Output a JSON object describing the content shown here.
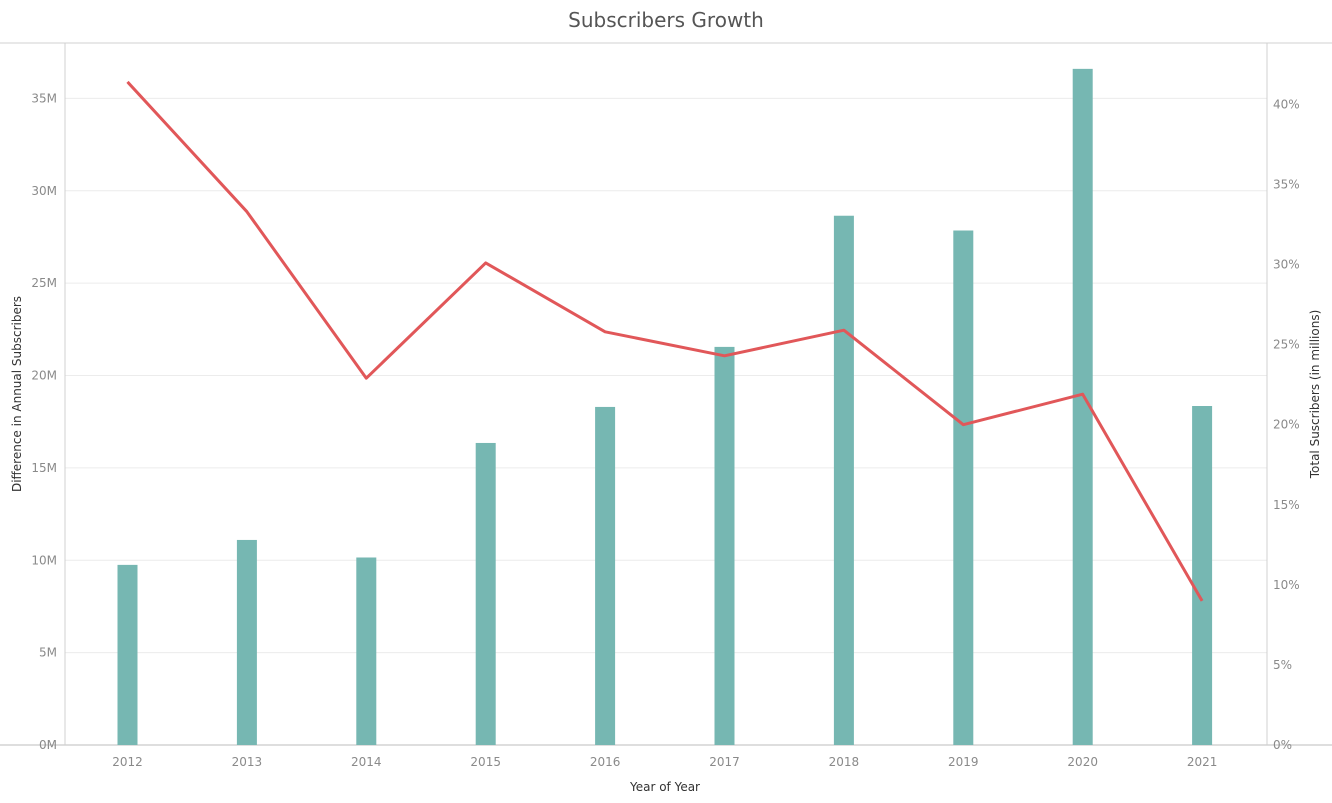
{
  "chart_data": {
    "type": "bar",
    "title": "Subscribers Growth",
    "xlabel": "Year of Year",
    "ylabel": "Difference in Annual Subscribers",
    "y2label": "Total Suscribers (in millions)",
    "categories": [
      "2012",
      "2013",
      "2014",
      "2015",
      "2016",
      "2017",
      "2018",
      "2019",
      "2020",
      "2021"
    ],
    "ylim": [
      0,
      38000000
    ],
    "y2lim": [
      0,
      0.4383
    ],
    "yticks": [
      0,
      5000000,
      10000000,
      15000000,
      20000000,
      25000000,
      30000000,
      35000000
    ],
    "ytick_labels": [
      "0M",
      "5M",
      "10M",
      "15M",
      "20M",
      "25M",
      "30M",
      "35M"
    ],
    "y2ticks": [
      0,
      0.05,
      0.1,
      0.15,
      0.2,
      0.25,
      0.3,
      0.35,
      0.4
    ],
    "y2tick_labels": [
      "0%",
      "5%",
      "10%",
      "15%",
      "20%",
      "25%",
      "30%",
      "35%",
      "40%"
    ],
    "grid": true,
    "series": [
      {
        "type": "bar",
        "axis": "left",
        "color": "#76b7b2",
        "values": [
          9750000,
          11100000,
          10150000,
          16350000,
          18300000,
          21550000,
          28650000,
          27850000,
          36600000,
          18350000
        ]
      },
      {
        "type": "line",
        "axis": "right",
        "color": "#e15759",
        "values": [
          0.414,
          0.333,
          0.229,
          0.301,
          0.258,
          0.243,
          0.259,
          0.2,
          0.219,
          0.09
        ]
      }
    ]
  }
}
